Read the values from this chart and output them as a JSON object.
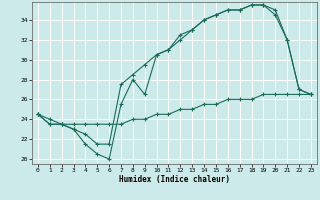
{
  "title": "",
  "xlabel": "Humidex (Indice chaleur)",
  "ylabel": "",
  "bg_color": "#cceaea",
  "grid_color": "#ffffff",
  "line_color": "#1a6b5a",
  "xlim": [
    -0.5,
    23.5
  ],
  "ylim": [
    19.5,
    35.8
  ],
  "xticks": [
    0,
    1,
    2,
    3,
    4,
    5,
    6,
    7,
    8,
    9,
    10,
    11,
    12,
    13,
    14,
    15,
    16,
    17,
    18,
    19,
    20,
    21,
    22,
    23
  ],
  "yticks": [
    20,
    22,
    24,
    26,
    28,
    30,
    32,
    34
  ],
  "line1_x": [
    0,
    1,
    2,
    3,
    4,
    5,
    6,
    7,
    8,
    9,
    10,
    11,
    12,
    13,
    14,
    15,
    16,
    17,
    18,
    19,
    20,
    21,
    22,
    23
  ],
  "line1_y": [
    24.5,
    23.5,
    23.5,
    23.0,
    21.5,
    20.5,
    20.0,
    25.5,
    28.0,
    26.5,
    30.5,
    31.0,
    32.0,
    33.0,
    34.0,
    34.5,
    35.0,
    35.0,
    35.5,
    35.5,
    34.5,
    32.0,
    27.0,
    26.5
  ],
  "line2_x": [
    0,
    1,
    2,
    3,
    4,
    5,
    6,
    7,
    8,
    9,
    10,
    11,
    12,
    13,
    14,
    15,
    16,
    17,
    18,
    19,
    20,
    21,
    22,
    23
  ],
  "line2_y": [
    24.5,
    23.5,
    23.5,
    23.0,
    22.5,
    21.5,
    21.5,
    27.5,
    28.5,
    29.5,
    30.5,
    31.0,
    32.5,
    33.0,
    34.0,
    34.5,
    35.0,
    35.0,
    35.5,
    35.5,
    35.0,
    32.0,
    27.0,
    26.5
  ],
  "line3_x": [
    0,
    1,
    2,
    3,
    4,
    5,
    6,
    7,
    8,
    9,
    10,
    11,
    12,
    13,
    14,
    15,
    16,
    17,
    18,
    19,
    20,
    21,
    22,
    23
  ],
  "line3_y": [
    24.5,
    24.0,
    23.5,
    23.5,
    23.5,
    23.5,
    23.5,
    23.5,
    24.0,
    24.0,
    24.5,
    24.5,
    25.0,
    25.0,
    25.5,
    25.5,
    26.0,
    26.0,
    26.0,
    26.5,
    26.5,
    26.5,
    26.5,
    26.5
  ]
}
